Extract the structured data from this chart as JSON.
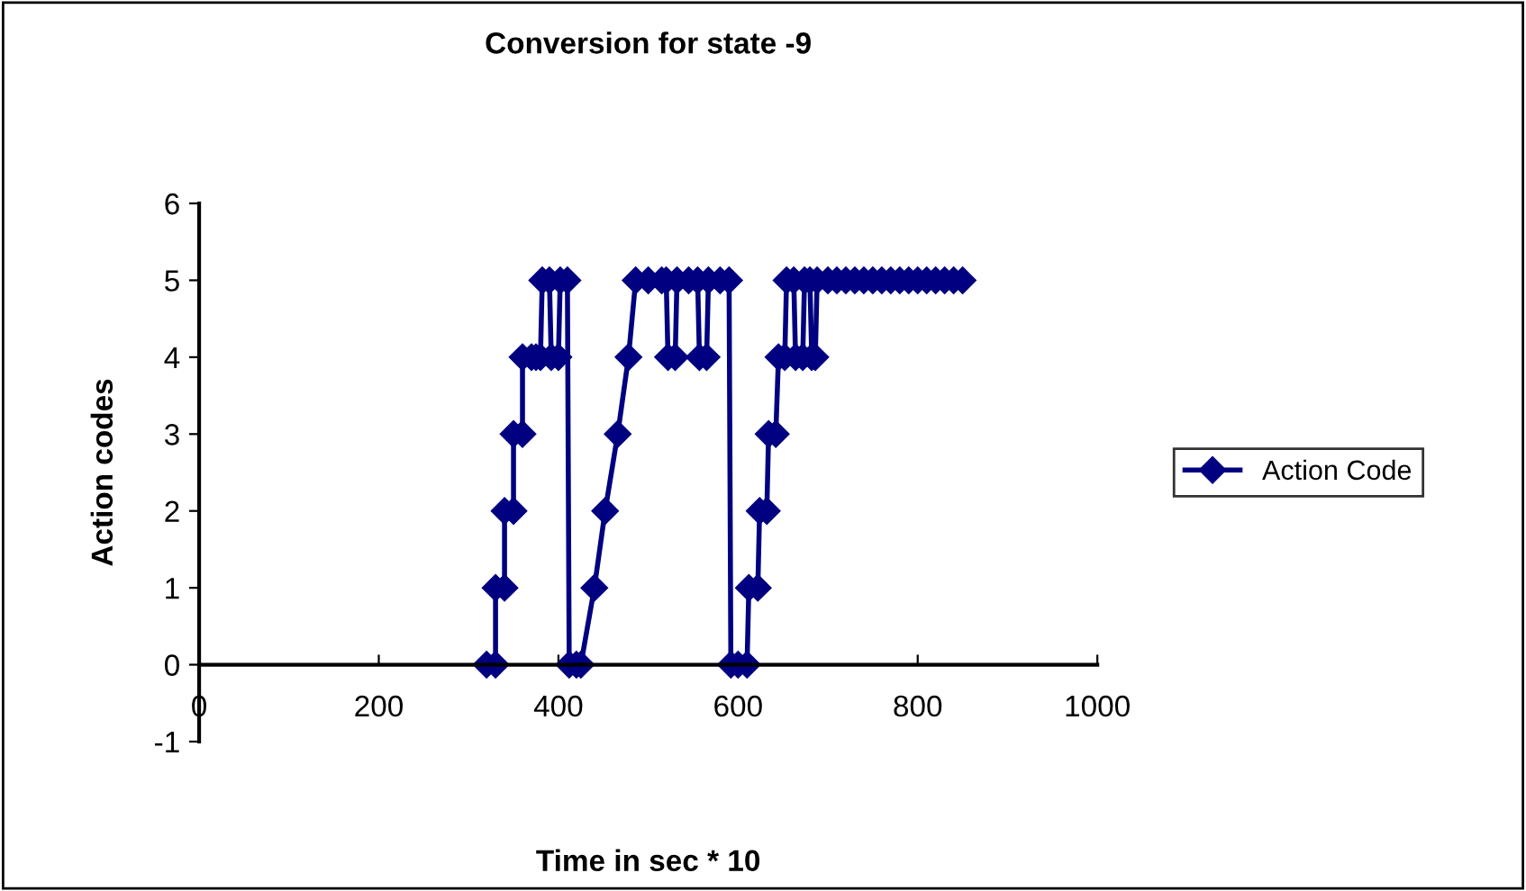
{
  "chart_data": {
    "type": "line",
    "title": "Conversion for state -9",
    "xlabel": "Time in sec * 10",
    "ylabel": "Action codes",
    "xlim": [
      0,
      1000
    ],
    "xticks": [
      0,
      200,
      400,
      600,
      800,
      1000
    ],
    "ylim": [
      -1,
      6
    ],
    "yticks": [
      -1,
      0,
      1,
      2,
      3,
      4,
      5,
      6
    ],
    "grid": false,
    "legend": "right",
    "marker": "diamond",
    "line_style": "solid",
    "series": [
      {
        "name": "Action Code",
        "color": "#000080",
        "x": [
          320,
          330,
          330,
          340,
          340,
          350,
          350,
          360,
          360,
          370,
          375,
          380,
          382,
          390,
          392,
          400,
          402,
          410,
          412,
          420,
          425,
          440,
          452,
          466,
          478,
          486,
          500,
          515,
          520,
          522,
          530,
          532,
          545,
          555,
          557,
          565,
          567,
          580,
          590,
          592,
          600,
          610,
          612,
          622,
          624,
          632,
          634,
          642,
          645,
          652,
          654,
          662,
          664,
          672,
          674,
          680,
          682,
          686,
          688,
          700,
          710,
          720,
          730,
          740,
          750,
          760,
          770,
          780,
          790,
          800,
          810,
          820,
          830,
          840,
          850
        ],
        "values": [
          0,
          0,
          1,
          1,
          2,
          2,
          3,
          3,
          4,
          4,
          4,
          4,
          5,
          5,
          4,
          4,
          5,
          5,
          0,
          0,
          0,
          1,
          2,
          3,
          4,
          5,
          5,
          5,
          5,
          4,
          4,
          5,
          5,
          5,
          4,
          4,
          5,
          5,
          5,
          0,
          0,
          0,
          1,
          1,
          2,
          2,
          3,
          3,
          4,
          4,
          5,
          5,
          4,
          4,
          5,
          5,
          4,
          4,
          5,
          5,
          5,
          5,
          5,
          5,
          5,
          5,
          5,
          5,
          5,
          5,
          5,
          5,
          5,
          5,
          5
        ]
      }
    ]
  }
}
